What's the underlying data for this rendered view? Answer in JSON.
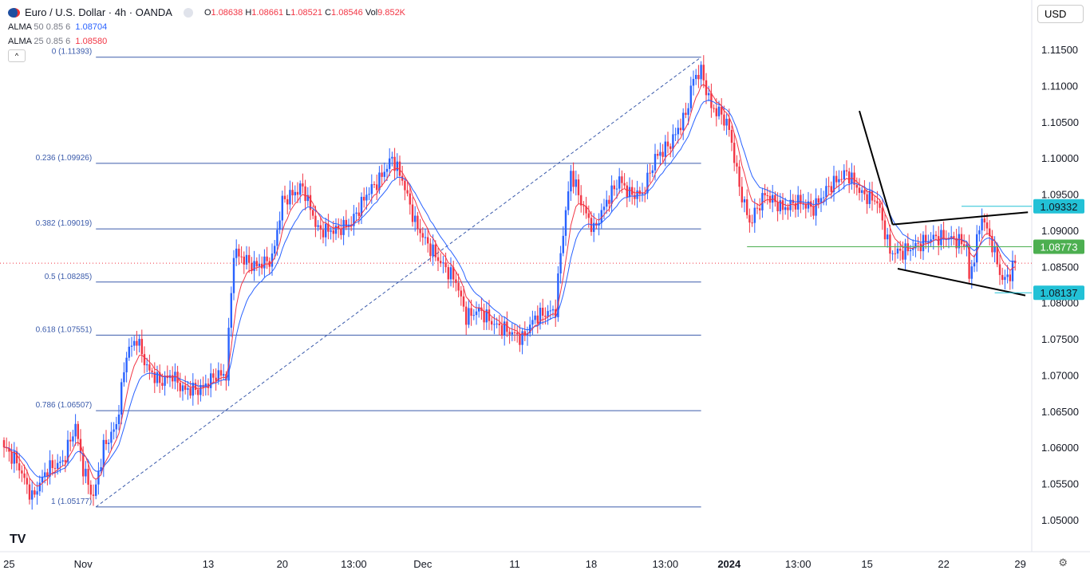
{
  "header": {
    "symbol": "Euro / U.S. Dollar · 4h · OANDA",
    "o_label": "O",
    "o": "1.08638",
    "h_label": "H",
    "h": "1.08661",
    "l_label": "L",
    "l": "1.08521",
    "c_label": "C",
    "c": "1.08546",
    "vol_label": "Vol",
    "vol": "9.852K"
  },
  "indicators": [
    {
      "name": "ALMA",
      "params": "50 0.85 6",
      "value": "1.08704",
      "color": "#2962ff"
    },
    {
      "name": "ALMA",
      "params": "25 0.85 6",
      "value": "1.08580",
      "color": "#f23645"
    }
  ],
  "currency": "USD",
  "logo": "TV",
  "chart_data": {
    "type": "candlestick",
    "ylim": [
      1.0475,
      1.1175
    ],
    "y_ticks": [
      "1.11500",
      "1.11000",
      "1.10500",
      "1.10000",
      "1.09500",
      "1.09000",
      "1.08500",
      "1.08000",
      "1.07500",
      "1.07000",
      "1.06500",
      "1.06000",
      "1.05500",
      "1.05000"
    ],
    "x_ticks": [
      {
        "label": "25",
        "bar": 2
      },
      {
        "label": "Nov",
        "bar": 31
      },
      {
        "label": "13",
        "bar": 80
      },
      {
        "label": "20",
        "bar": 109
      },
      {
        "label": "13:00",
        "bar": 137
      },
      {
        "label": "Dec",
        "bar": 164
      },
      {
        "label": "11",
        "bar": 200
      },
      {
        "label": "18",
        "bar": 230
      },
      {
        "label": "13:00",
        "bar": 259
      },
      {
        "label": "2024",
        "bar": 284,
        "bold": true
      },
      {
        "label": "13:00",
        "bar": 311
      },
      {
        "label": "15",
        "bar": 338
      },
      {
        "label": "22",
        "bar": 368
      },
      {
        "label": "29",
        "bar": 398
      }
    ],
    "close_path": [
      [
        0,
        1.06
      ],
      [
        5,
        1.058
      ],
      [
        11,
        1.053
      ],
      [
        17,
        1.057
      ],
      [
        23,
        1.058
      ],
      [
        28,
        1.063
      ],
      [
        31,
        1.057
      ],
      [
        35,
        1.053
      ],
      [
        39,
        1.06
      ],
      [
        44,
        1.063
      ],
      [
        48,
        1.073
      ],
      [
        52,
        1.075
      ],
      [
        56,
        1.071
      ],
      [
        61,
        1.069
      ],
      [
        66,
        1.07
      ],
      [
        70,
        1.068
      ],
      [
        77,
        1.068
      ],
      [
        83,
        1.07
      ],
      [
        87,
        1.07
      ],
      [
        90,
        1.087
      ],
      [
        94,
        1.086
      ],
      [
        98,
        1.085
      ],
      [
        105,
        1.086
      ],
      [
        109,
        1.094
      ],
      [
        117,
        1.096
      ],
      [
        123,
        1.09
      ],
      [
        130,
        1.09
      ],
      [
        136,
        1.091
      ],
      [
        142,
        1.095
      ],
      [
        147,
        1.097
      ],
      [
        152,
        1.1
      ],
      [
        156,
        1.097
      ],
      [
        161,
        1.091
      ],
      [
        166,
        1.088
      ],
      [
        170,
        1.086
      ],
      [
        177,
        1.083
      ],
      [
        181,
        1.078
      ],
      [
        186,
        1.079
      ],
      [
        192,
        1.077
      ],
      [
        198,
        1.076
      ],
      [
        203,
        1.075
      ],
      [
        208,
        1.078
      ],
      [
        216,
        1.079
      ],
      [
        218,
        1.087
      ],
      [
        222,
        1.098
      ],
      [
        227,
        1.093
      ],
      [
        231,
        1.09
      ],
      [
        236,
        1.094
      ],
      [
        241,
        1.097
      ],
      [
        245,
        1.095
      ],
      [
        250,
        1.095
      ],
      [
        255,
        1.1
      ],
      [
        261,
        1.102
      ],
      [
        267,
        1.106
      ],
      [
        270,
        1.111
      ],
      [
        273,
        1.112
      ],
      [
        277,
        1.107
      ],
      [
        281,
        1.106
      ],
      [
        284,
        1.104
      ],
      [
        288,
        1.096
      ],
      [
        292,
        1.091
      ],
      [
        298,
        1.095
      ],
      [
        305,
        1.093
      ],
      [
        311,
        1.094
      ],
      [
        317,
        1.093
      ],
      [
        323,
        1.096
      ],
      [
        330,
        1.098
      ],
      [
        336,
        1.095
      ],
      [
        342,
        1.094
      ],
      [
        347,
        1.087
      ],
      [
        352,
        1.087
      ],
      [
        358,
        1.088
      ],
      [
        364,
        1.089
      ],
      [
        370,
        1.089
      ],
      [
        377,
        1.088
      ],
      [
        378,
        1.083
      ],
      [
        383,
        1.092
      ],
      [
        387,
        1.088
      ],
      [
        391,
        1.083
      ],
      [
        394,
        1.084
      ],
      [
        396,
        1.0855
      ]
    ],
    "current_price": 1.08546,
    "fibonacci": [
      {
        "level": "0",
        "price": 1.11393,
        "label": "0 (1.11393)"
      },
      {
        "level": "0.236",
        "price": 1.09926,
        "label": "0.236 (1.09926)"
      },
      {
        "level": "0.382",
        "price": 1.09019,
        "label": "0.382 (1.09019)"
      },
      {
        "level": "0.5",
        "price": 1.08285,
        "label": "0.5 (1.08285)"
      },
      {
        "level": "0.618",
        "price": 1.07551,
        "label": "0.618 (1.07551)"
      },
      {
        "level": "0.786",
        "price": 1.06507,
        "label": "0.786 (1.06507)"
      },
      {
        "level": "1",
        "price": 1.05177,
        "label": "1 (1.05177)"
      }
    ],
    "fib_range_bars": [
      36,
      273
    ],
    "price_badges": [
      {
        "price": 1.09332,
        "label": "1.09332",
        "color": "#22c1d6"
      },
      {
        "price": 1.08773,
        "label": "1.08773",
        "color": "#4caf50"
      },
      {
        "price": 1.08137,
        "label": "1.08137",
        "color": "#22c1d6"
      }
    ],
    "trendlines": [
      [
        [
          335,
          1.1065
        ],
        [
          348,
          1.0908
        ]
      ],
      [
        [
          348,
          1.0908
        ],
        [
          401,
          1.0925
        ]
      ],
      [
        [
          350,
          1.0847
        ],
        [
          400,
          1.081
        ]
      ]
    ],
    "colors": {
      "up": "#2962ff",
      "down": "#f23645",
      "ma_slow": "#2962ff",
      "ma_fast": "#f23645",
      "fib": "#3b5bab"
    }
  }
}
